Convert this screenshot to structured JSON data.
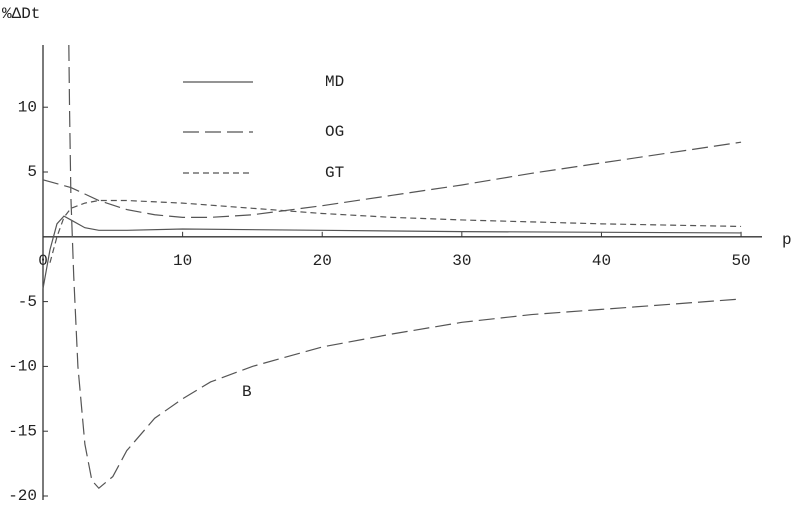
{
  "chart_data": {
    "type": "line",
    "y_label": "%ΔDt",
    "x_label": "p",
    "xlim": [
      0,
      51.5
    ],
    "ylim": [
      -20,
      14.8
    ],
    "xticks": [
      0,
      10,
      20,
      30,
      40,
      50
    ],
    "yticks": [
      -20,
      -15,
      -10,
      -5,
      5,
      10
    ],
    "series": [
      {
        "name": "MD",
        "dash": "solid",
        "color": "#555555",
        "x": [
          0,
          0.5,
          1,
          1.5,
          2,
          3,
          4,
          6,
          10,
          20,
          30,
          50
        ],
        "values": [
          -4,
          -1,
          1,
          1.6,
          1.3,
          0.7,
          0.5,
          0.5,
          0.6,
          0.5,
          0.4,
          0.3
        ]
      },
      {
        "name": "OG",
        "dash": "long",
        "color": "#555555",
        "x": [
          0,
          2,
          4,
          6,
          8,
          10,
          12,
          15,
          20,
          25,
          30,
          35,
          40,
          45,
          50
        ],
        "values": [
          4.4,
          3.8,
          2.8,
          2.1,
          1.7,
          1.5,
          1.5,
          1.7,
          2.4,
          3.2,
          4.0,
          4.9,
          5.7,
          6.5,
          7.3
        ]
      },
      {
        "name": "GT",
        "dash": "short",
        "color": "#555555",
        "x": [
          0.5,
          1,
          1.5,
          2,
          3,
          4,
          6,
          10,
          15,
          20,
          25,
          30,
          40,
          50
        ],
        "values": [
          -2,
          0,
          1.5,
          2.2,
          2.6,
          2.8,
          2.8,
          2.6,
          2.2,
          1.8,
          1.5,
          1.3,
          1.0,
          0.8
        ]
      },
      {
        "name": "B",
        "dash": "long",
        "color": "#555555",
        "x": [
          1.85,
          1.9,
          2.0,
          2.2,
          2.5,
          3,
          3.5,
          4,
          5,
          6,
          8,
          10,
          12,
          15,
          20,
          25,
          30,
          35,
          40,
          45,
          50
        ],
        "values": [
          14.8,
          10,
          3,
          -3,
          -10,
          -16,
          -18.8,
          -19.4,
          -18.5,
          -16.5,
          -14,
          -12.5,
          -11.2,
          -10,
          -8.5,
          -7.5,
          -6.6,
          -6,
          -5.6,
          -5.2,
          -4.8
        ]
      }
    ]
  }
}
